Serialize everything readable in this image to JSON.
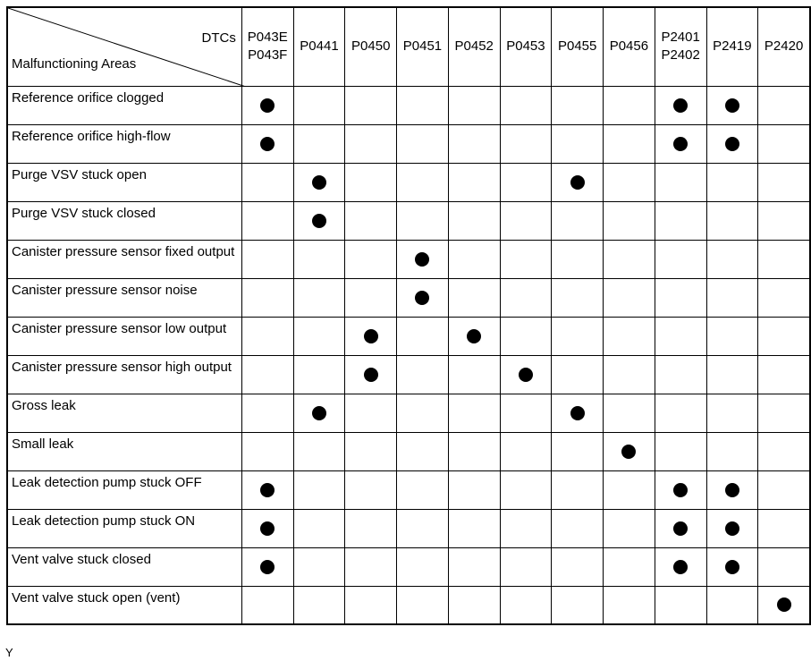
{
  "table": {
    "corner_top": "DTCs",
    "corner_bottom": "Malfunctioning Areas",
    "columns": [
      [
        "P043E",
        "P043F"
      ],
      [
        "P0441"
      ],
      [
        "P0450"
      ],
      [
        "P0451"
      ],
      [
        "P0452"
      ],
      [
        "P0453"
      ],
      [
        "P0455"
      ],
      [
        "P0456"
      ],
      [
        "P2401",
        "P2402"
      ],
      [
        "P2419"
      ],
      [
        "P2420"
      ]
    ],
    "rows": [
      {
        "area": "Reference orifice clogged",
        "marks": [
          true,
          false,
          false,
          false,
          false,
          false,
          false,
          false,
          true,
          true,
          false
        ]
      },
      {
        "area": "Reference orifice high-flow",
        "marks": [
          true,
          false,
          false,
          false,
          false,
          false,
          false,
          false,
          true,
          true,
          false
        ]
      },
      {
        "area": "Purge VSV stuck open",
        "marks": [
          false,
          true,
          false,
          false,
          false,
          false,
          true,
          false,
          false,
          false,
          false
        ]
      },
      {
        "area": "Purge VSV stuck closed",
        "marks": [
          false,
          true,
          false,
          false,
          false,
          false,
          false,
          false,
          false,
          false,
          false
        ]
      },
      {
        "area": "Canister pressure sensor fixed output",
        "marks": [
          false,
          false,
          false,
          true,
          false,
          false,
          false,
          false,
          false,
          false,
          false
        ]
      },
      {
        "area": "Canister pressure sensor noise",
        "marks": [
          false,
          false,
          false,
          true,
          false,
          false,
          false,
          false,
          false,
          false,
          false
        ]
      },
      {
        "area": "Canister pressure sensor low output",
        "marks": [
          false,
          false,
          true,
          false,
          true,
          false,
          false,
          false,
          false,
          false,
          false
        ]
      },
      {
        "area": "Canister pressure sensor high output",
        "marks": [
          false,
          false,
          true,
          false,
          false,
          true,
          false,
          false,
          false,
          false,
          false
        ]
      },
      {
        "area": "Gross leak",
        "marks": [
          false,
          true,
          false,
          false,
          false,
          false,
          true,
          false,
          false,
          false,
          false
        ]
      },
      {
        "area": "Small leak",
        "marks": [
          false,
          false,
          false,
          false,
          false,
          false,
          false,
          true,
          false,
          false,
          false
        ]
      },
      {
        "area": "Leak detection pump stuck OFF",
        "marks": [
          true,
          false,
          false,
          false,
          false,
          false,
          false,
          false,
          true,
          true,
          false
        ]
      },
      {
        "area": "Leak detection pump stuck ON",
        "marks": [
          true,
          false,
          false,
          false,
          false,
          false,
          false,
          false,
          true,
          true,
          false
        ]
      },
      {
        "area": "Vent valve stuck closed",
        "marks": [
          true,
          false,
          false,
          false,
          false,
          false,
          false,
          false,
          true,
          true,
          false
        ]
      },
      {
        "area": "Vent valve stuck open (vent)",
        "marks": [
          false,
          false,
          false,
          false,
          false,
          false,
          false,
          false,
          false,
          false,
          true
        ]
      }
    ],
    "footer": "Y"
  }
}
